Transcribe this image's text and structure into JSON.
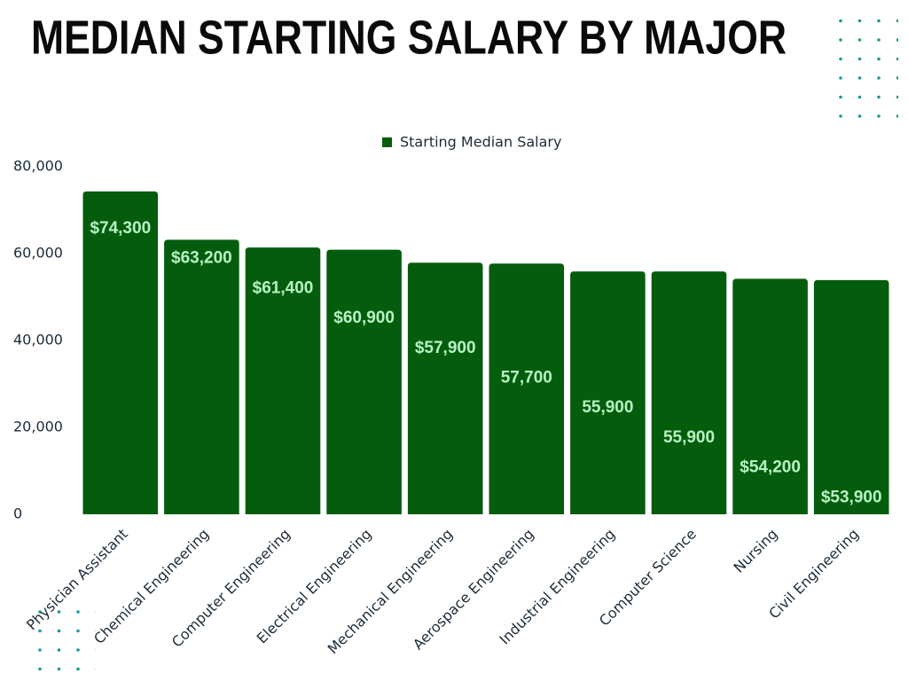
{
  "chart_data": {
    "type": "bar",
    "title": "MEDIAN STARTING SALARY BY MAJOR",
    "categories": [
      "Physician Assistant",
      "Chemical Engineering",
      "Computer Engineering",
      "Electrical Engineering",
      "Mechanical Engineering",
      "Aerospace Engineering",
      "Industrial Engineering",
      "Computer Science",
      "Nursing",
      "Civil Engineering"
    ],
    "series": [
      {
        "name": "Starting Median Salary",
        "color": "#045d0d",
        "values": [
          74300,
          63200,
          61400,
          60900,
          57900,
          57700,
          55900,
          55900,
          54200,
          53900
        ],
        "value_labels": [
          "$74,300",
          "$63,200",
          "$61,400",
          "$60,900",
          "$57,900",
          "57,700",
          "55,900",
          "55,900",
          "$54,200",
          "$53,900"
        ]
      }
    ],
    "ylim": [
      0,
      80000
    ],
    "yticks": [
      0,
      {
        "value": 20000,
        "label": "20,000"
      },
      {
        "value": 40000,
        "label": "40,000"
      },
      {
        "value": 60000,
        "label": "60,000"
      },
      {
        "value": 80000,
        "label": "80,000"
      }
    ],
    "grid": false
  }
}
